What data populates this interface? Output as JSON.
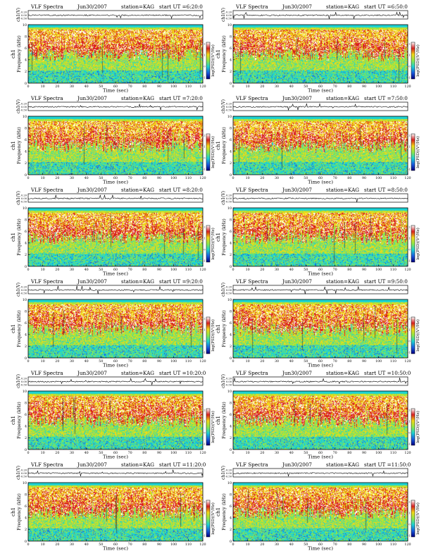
{
  "chart_data": {
    "type": "heatmap",
    "layout": {
      "rows": 6,
      "columns": 2
    },
    "shared": {
      "product_label": "VLF Spectra",
      "station_label": "station=KAG",
      "start_prefix": "start  UT  =",
      "top_ylabel": "ch1(V)",
      "top_yticks": [
        "0.20",
        "0.00",
        "-0.50"
      ],
      "ylabel_channel": "ch1",
      "ylabel": "Frequency (kHz)",
      "yticks": [
        "0",
        "2",
        "4",
        "6",
        "8",
        "10"
      ],
      "ylim": [
        0,
        10
      ],
      "xlabel": "Time (sec)",
      "xticks": [
        "0",
        "10",
        "20",
        "30",
        "40",
        "50",
        "60",
        "70",
        "80",
        "90",
        "100",
        "110",
        "120"
      ],
      "xlim": [
        0,
        120
      ],
      "colorbar_label": "log(PSD)(V²/Hz)",
      "colorbar_ticks": [
        "2",
        "1",
        "0",
        "-1"
      ],
      "colormap": [
        "#ffffff",
        "#d92020",
        "#f2d818",
        "#8ee84a",
        "#1dd2d2",
        "#1a5de0",
        "#000080"
      ]
    },
    "panels": [
      {
        "date": "Jun30/2007",
        "start": "6:20:0"
      },
      {
        "date": "Jun30/2007",
        "start": "6:50:0"
      },
      {
        "date": "Jun30/2007",
        "start": "7:20:0"
      },
      {
        "date": "Jun30/2007",
        "start": "7:50:0"
      },
      {
        "date": "Jun30/2007",
        "start": "8:20:0"
      },
      {
        "date": "Jun30/2007",
        "start": "8:50:0"
      },
      {
        "date": "Jun30/2007",
        "start": "9:20:0"
      },
      {
        "date": "Jun30/2007",
        "start": "9:50:0"
      },
      {
        "date": "Jun30/2007",
        "start": "10:20:0"
      },
      {
        "date": "Jun30/2007",
        "start": "10:50:0"
      },
      {
        "date": "Jun30/2007",
        "start": "11:20:0"
      },
      {
        "date": "Jun30/2007",
        "start": "11:50:0"
      }
    ]
  }
}
